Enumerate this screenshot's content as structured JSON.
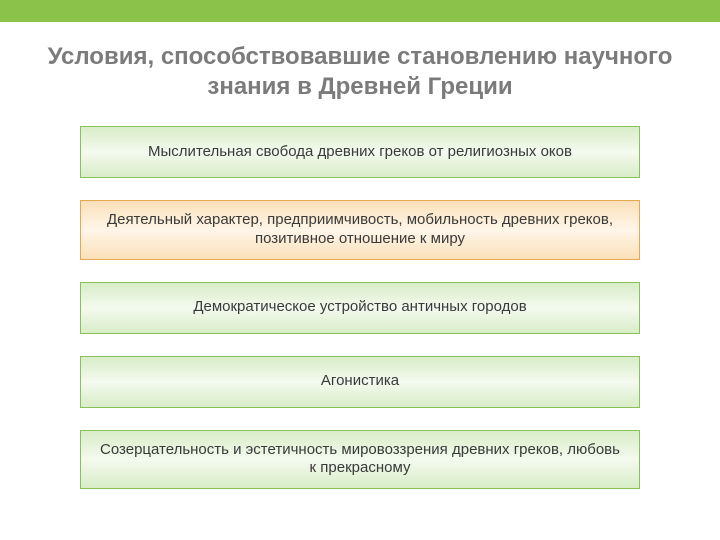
{
  "layout": {
    "top_bar_color": "#8bc34a",
    "background": "#ffffff"
  },
  "title": {
    "text": "Условия, способствовавшие становлению научного знания в Древней Греции",
    "color": "#7b7b7b",
    "fontsize": 24
  },
  "boxes": {
    "item_fontsize": 15,
    "item_color": "#3a3a3a",
    "min_height": 52,
    "styles": {
      "green": {
        "border": "#89c057",
        "grad_edge": "#d8edc7",
        "grad_mid": "#f4faef"
      },
      "orange": {
        "border": "#e6a94f",
        "grad_edge": "#fbe0b8",
        "grad_mid": "#fef6ea"
      }
    },
    "items": [
      {
        "text": "Мыслительная свобода древних греков от религиозных оков",
        "style": "green"
      },
      {
        "text": "Деятельный характер, предприимчивость, мобильность древних греков, позитивное отношение к миру",
        "style": "orange"
      },
      {
        "text": "Демократическое устройство античных городов",
        "style": "green"
      },
      {
        "text": "Агонистика",
        "style": "green"
      },
      {
        "text": "Созерцательность и эстетичность мировоззрения древних греков, любовь к прекрасному",
        "style": "green"
      }
    ]
  }
}
